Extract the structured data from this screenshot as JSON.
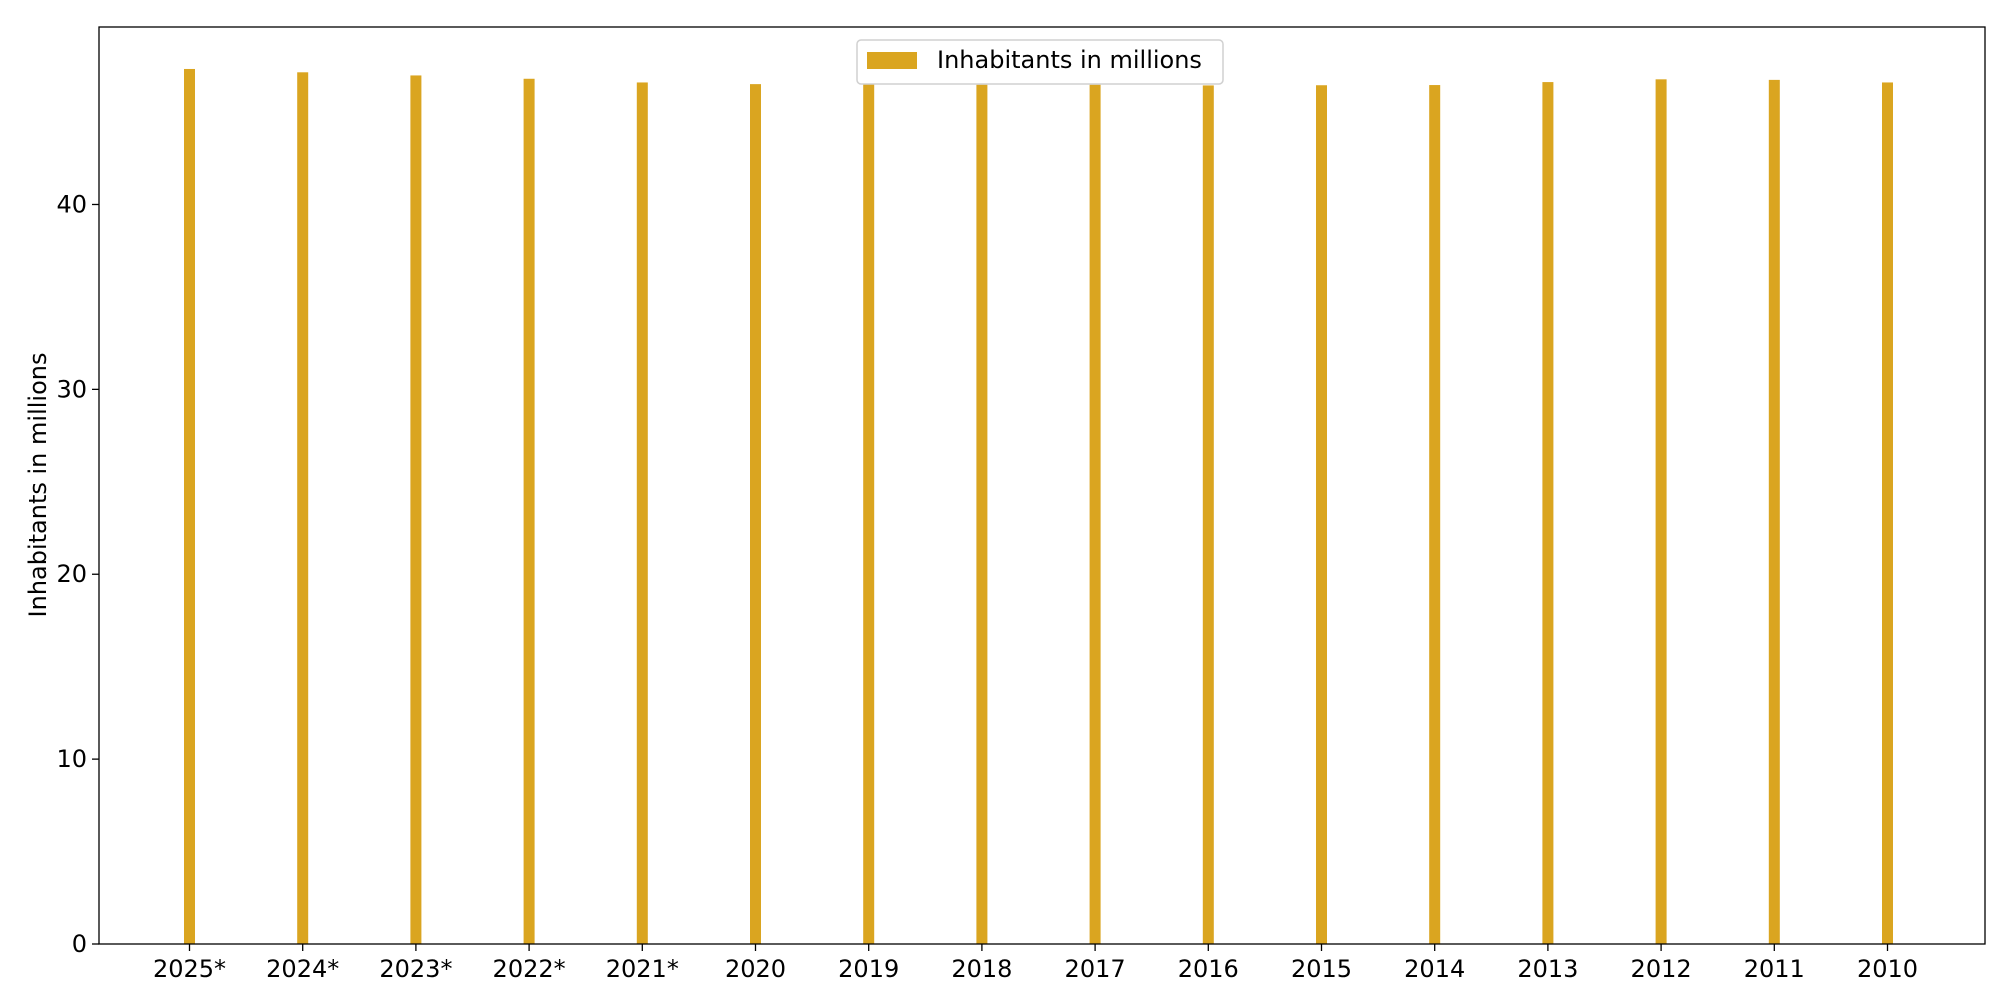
{
  "chart_data": {
    "type": "bar",
    "categories": [
      "2025*",
      "2024*",
      "2023*",
      "2022*",
      "2021*",
      "2020",
      "2019",
      "2018",
      "2017",
      "2016",
      "2015",
      "2014",
      "2013",
      "2012",
      "2011",
      "2010"
    ],
    "series": [
      {
        "name": "Inhabitants in millions",
        "values": [
          47.33,
          47.15,
          46.98,
          46.8,
          46.6,
          46.51,
          46.51,
          46.48,
          46.48,
          46.44,
          46.45,
          46.46,
          46.62,
          46.77,
          46.74,
          46.6
        ],
        "color": "#DAA520"
      }
    ],
    "title": "",
    "xlabel": "",
    "ylabel": "Inhabitants in millions",
    "ylim": [
      0,
      49.6
    ],
    "yticks": [
      0,
      10,
      20,
      30,
      40
    ],
    "grid": false,
    "legend_position": "top-center"
  }
}
